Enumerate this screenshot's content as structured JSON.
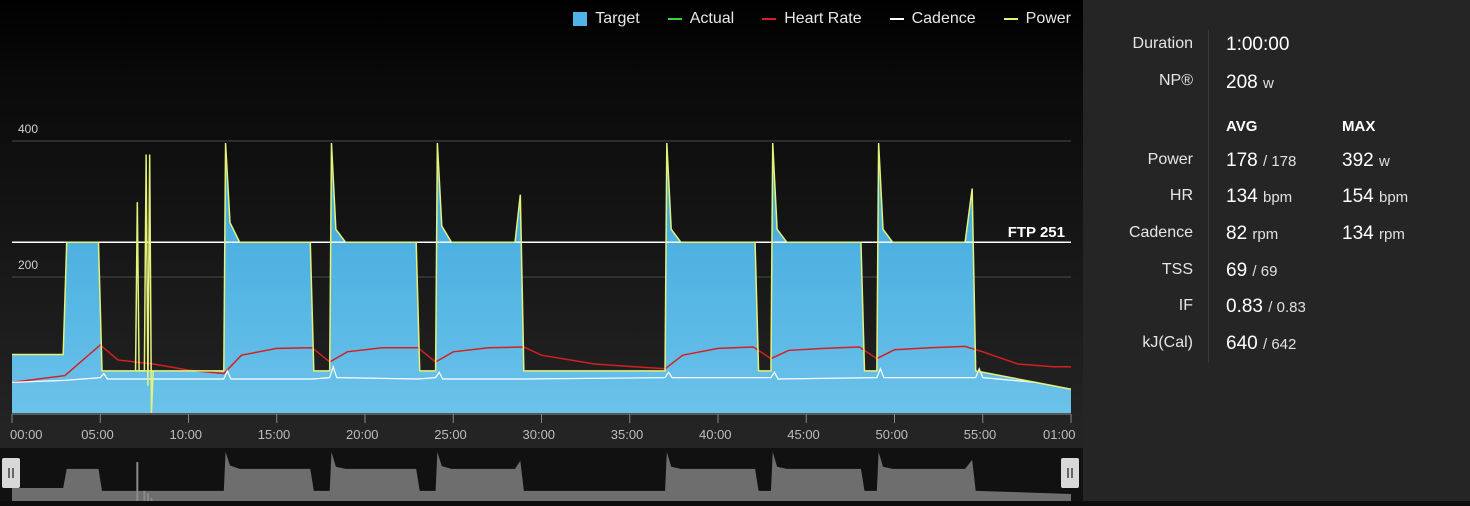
{
  "legend": [
    {
      "label": "Target",
      "color": "#4fb3e8",
      "kind": "box"
    },
    {
      "label": "Actual",
      "color": "#3ad13a",
      "kind": "line"
    },
    {
      "label": "Heart Rate",
      "color": "#d42020",
      "kind": "line"
    },
    {
      "label": "Cadence",
      "color": "#ffffff",
      "kind": "line"
    },
    {
      "label": "Power",
      "color": "#e4f27a",
      "kind": "line"
    }
  ],
  "chart_data": {
    "type": "area",
    "x_unit": "minutes",
    "xlim": [
      0,
      60
    ],
    "ylim": [
      0,
      460
    ],
    "y_ticks": [
      {
        "value": 200,
        "label": "200"
      },
      {
        "value": 400,
        "label": "400"
      }
    ],
    "x_ticks": [
      "00:00",
      "05:00",
      "10:00",
      "15:00",
      "20:00",
      "25:00",
      "30:00",
      "35:00",
      "40:00",
      "45:00",
      "50:00",
      "55:00",
      "01:00"
    ],
    "ftp": {
      "value": 251,
      "label": "FTP 251"
    },
    "target": [
      [
        0,
        86
      ],
      [
        2.9,
        86
      ],
      [
        3.1,
        251
      ],
      [
        4.9,
        251
      ],
      [
        5.1,
        62
      ],
      [
        12.0,
        62
      ],
      [
        12.1,
        397
      ],
      [
        12.35,
        280
      ],
      [
        12.9,
        251
      ],
      [
        16.9,
        251
      ],
      [
        17.1,
        62
      ],
      [
        18.0,
        62
      ],
      [
        18.1,
        397
      ],
      [
        18.35,
        270
      ],
      [
        18.9,
        251
      ],
      [
        22.9,
        251
      ],
      [
        23.1,
        62
      ],
      [
        24.0,
        62
      ],
      [
        24.1,
        397
      ],
      [
        24.35,
        275
      ],
      [
        24.9,
        251
      ],
      [
        28.5,
        251
      ],
      [
        28.8,
        321
      ],
      [
        29.0,
        62
      ],
      [
        37.0,
        62
      ],
      [
        37.1,
        397
      ],
      [
        37.35,
        270
      ],
      [
        37.9,
        251
      ],
      [
        42.1,
        251
      ],
      [
        42.3,
        62
      ],
      [
        43.0,
        62
      ],
      [
        43.1,
        397
      ],
      [
        43.35,
        270
      ],
      [
        43.9,
        251
      ],
      [
        48.1,
        251
      ],
      [
        48.3,
        62
      ],
      [
        49.0,
        62
      ],
      [
        49.1,
        397
      ],
      [
        49.35,
        270
      ],
      [
        49.9,
        251
      ],
      [
        54.0,
        251
      ],
      [
        54.4,
        330
      ],
      [
        54.6,
        62
      ],
      [
        60,
        35
      ]
    ],
    "power_spikes": [
      [
        7.0,
        62
      ],
      [
        7.1,
        310
      ],
      [
        7.2,
        62
      ],
      [
        7.5,
        62
      ],
      [
        7.6,
        380
      ],
      [
        7.7,
        40
      ],
      [
        7.8,
        380
      ],
      [
        7.9,
        0
      ],
      [
        8.0,
        62
      ]
    ],
    "heart_rate": [
      [
        0,
        45
      ],
      [
        3,
        55
      ],
      [
        5,
        100
      ],
      [
        6,
        78
      ],
      [
        8,
        72
      ],
      [
        10,
        63
      ],
      [
        12,
        58
      ],
      [
        13,
        85
      ],
      [
        15,
        95
      ],
      [
        17,
        96
      ],
      [
        18,
        75
      ],
      [
        19,
        90
      ],
      [
        21,
        96
      ],
      [
        23,
        96
      ],
      [
        24,
        75
      ],
      [
        25,
        90
      ],
      [
        27,
        96
      ],
      [
        29,
        97
      ],
      [
        30,
        85
      ],
      [
        33,
        72
      ],
      [
        37,
        65
      ],
      [
        38,
        85
      ],
      [
        40,
        95
      ],
      [
        42,
        97
      ],
      [
        43,
        80
      ],
      [
        44,
        92
      ],
      [
        46,
        95
      ],
      [
        48,
        97
      ],
      [
        49,
        80
      ],
      [
        50,
        93
      ],
      [
        52,
        96
      ],
      [
        54,
        98
      ],
      [
        55,
        90
      ],
      [
        57,
        72
      ],
      [
        59,
        68
      ],
      [
        60,
        68
      ]
    ],
    "cadence": [
      [
        0,
        45
      ],
      [
        3,
        48
      ],
      [
        5,
        52
      ],
      [
        5.2,
        58
      ],
      [
        5.4,
        50
      ],
      [
        8,
        50
      ],
      [
        12,
        50
      ],
      [
        12.2,
        62
      ],
      [
        12.4,
        50
      ],
      [
        17,
        50
      ],
      [
        18,
        52
      ],
      [
        18.2,
        68
      ],
      [
        18.4,
        52
      ],
      [
        23,
        50
      ],
      [
        24,
        52
      ],
      [
        24.2,
        60
      ],
      [
        24.4,
        50
      ],
      [
        29,
        50
      ],
      [
        37,
        52
      ],
      [
        37.2,
        60
      ],
      [
        37.4,
        52
      ],
      [
        43,
        52
      ],
      [
        43.2,
        60
      ],
      [
        43.4,
        50
      ],
      [
        49,
        52
      ],
      [
        49.2,
        65
      ],
      [
        49.4,
        52
      ],
      [
        54.6,
        52
      ],
      [
        54.8,
        65
      ],
      [
        55.0,
        52
      ],
      [
        58,
        45
      ],
      [
        60,
        35
      ]
    ]
  },
  "overview": {
    "handle_left_icon": "pause-grip-icon",
    "handle_right_icon": "pause-grip-icon"
  },
  "stats": {
    "duration": {
      "label": "Duration",
      "value": "1:00:00"
    },
    "np": {
      "label": "NP®",
      "value": "208",
      "unit": "w"
    },
    "col_avg": "AVG",
    "col_max": "MAX",
    "rows": [
      {
        "label": "Power",
        "avg": "178",
        "avg_sub": "/ 178",
        "max": "392",
        "max_unit": "w"
      },
      {
        "label": "HR",
        "avg": "134",
        "avg_sub": "bpm",
        "max": "154",
        "max_unit": "bpm"
      },
      {
        "label": "Cadence",
        "avg": "82",
        "avg_sub": "rpm",
        "max": "134",
        "max_unit": "rpm"
      },
      {
        "label": "TSS",
        "avg": "69",
        "avg_sub": "/ 69",
        "max": "",
        "max_unit": ""
      },
      {
        "label": "IF",
        "avg": "0.83",
        "avg_sub": "/ 0.83",
        "max": "",
        "max_unit": ""
      },
      {
        "label": "kJ(Cal)",
        "avg": "640",
        "avg_sub": "/ 642",
        "max": "",
        "max_unit": ""
      }
    ]
  }
}
